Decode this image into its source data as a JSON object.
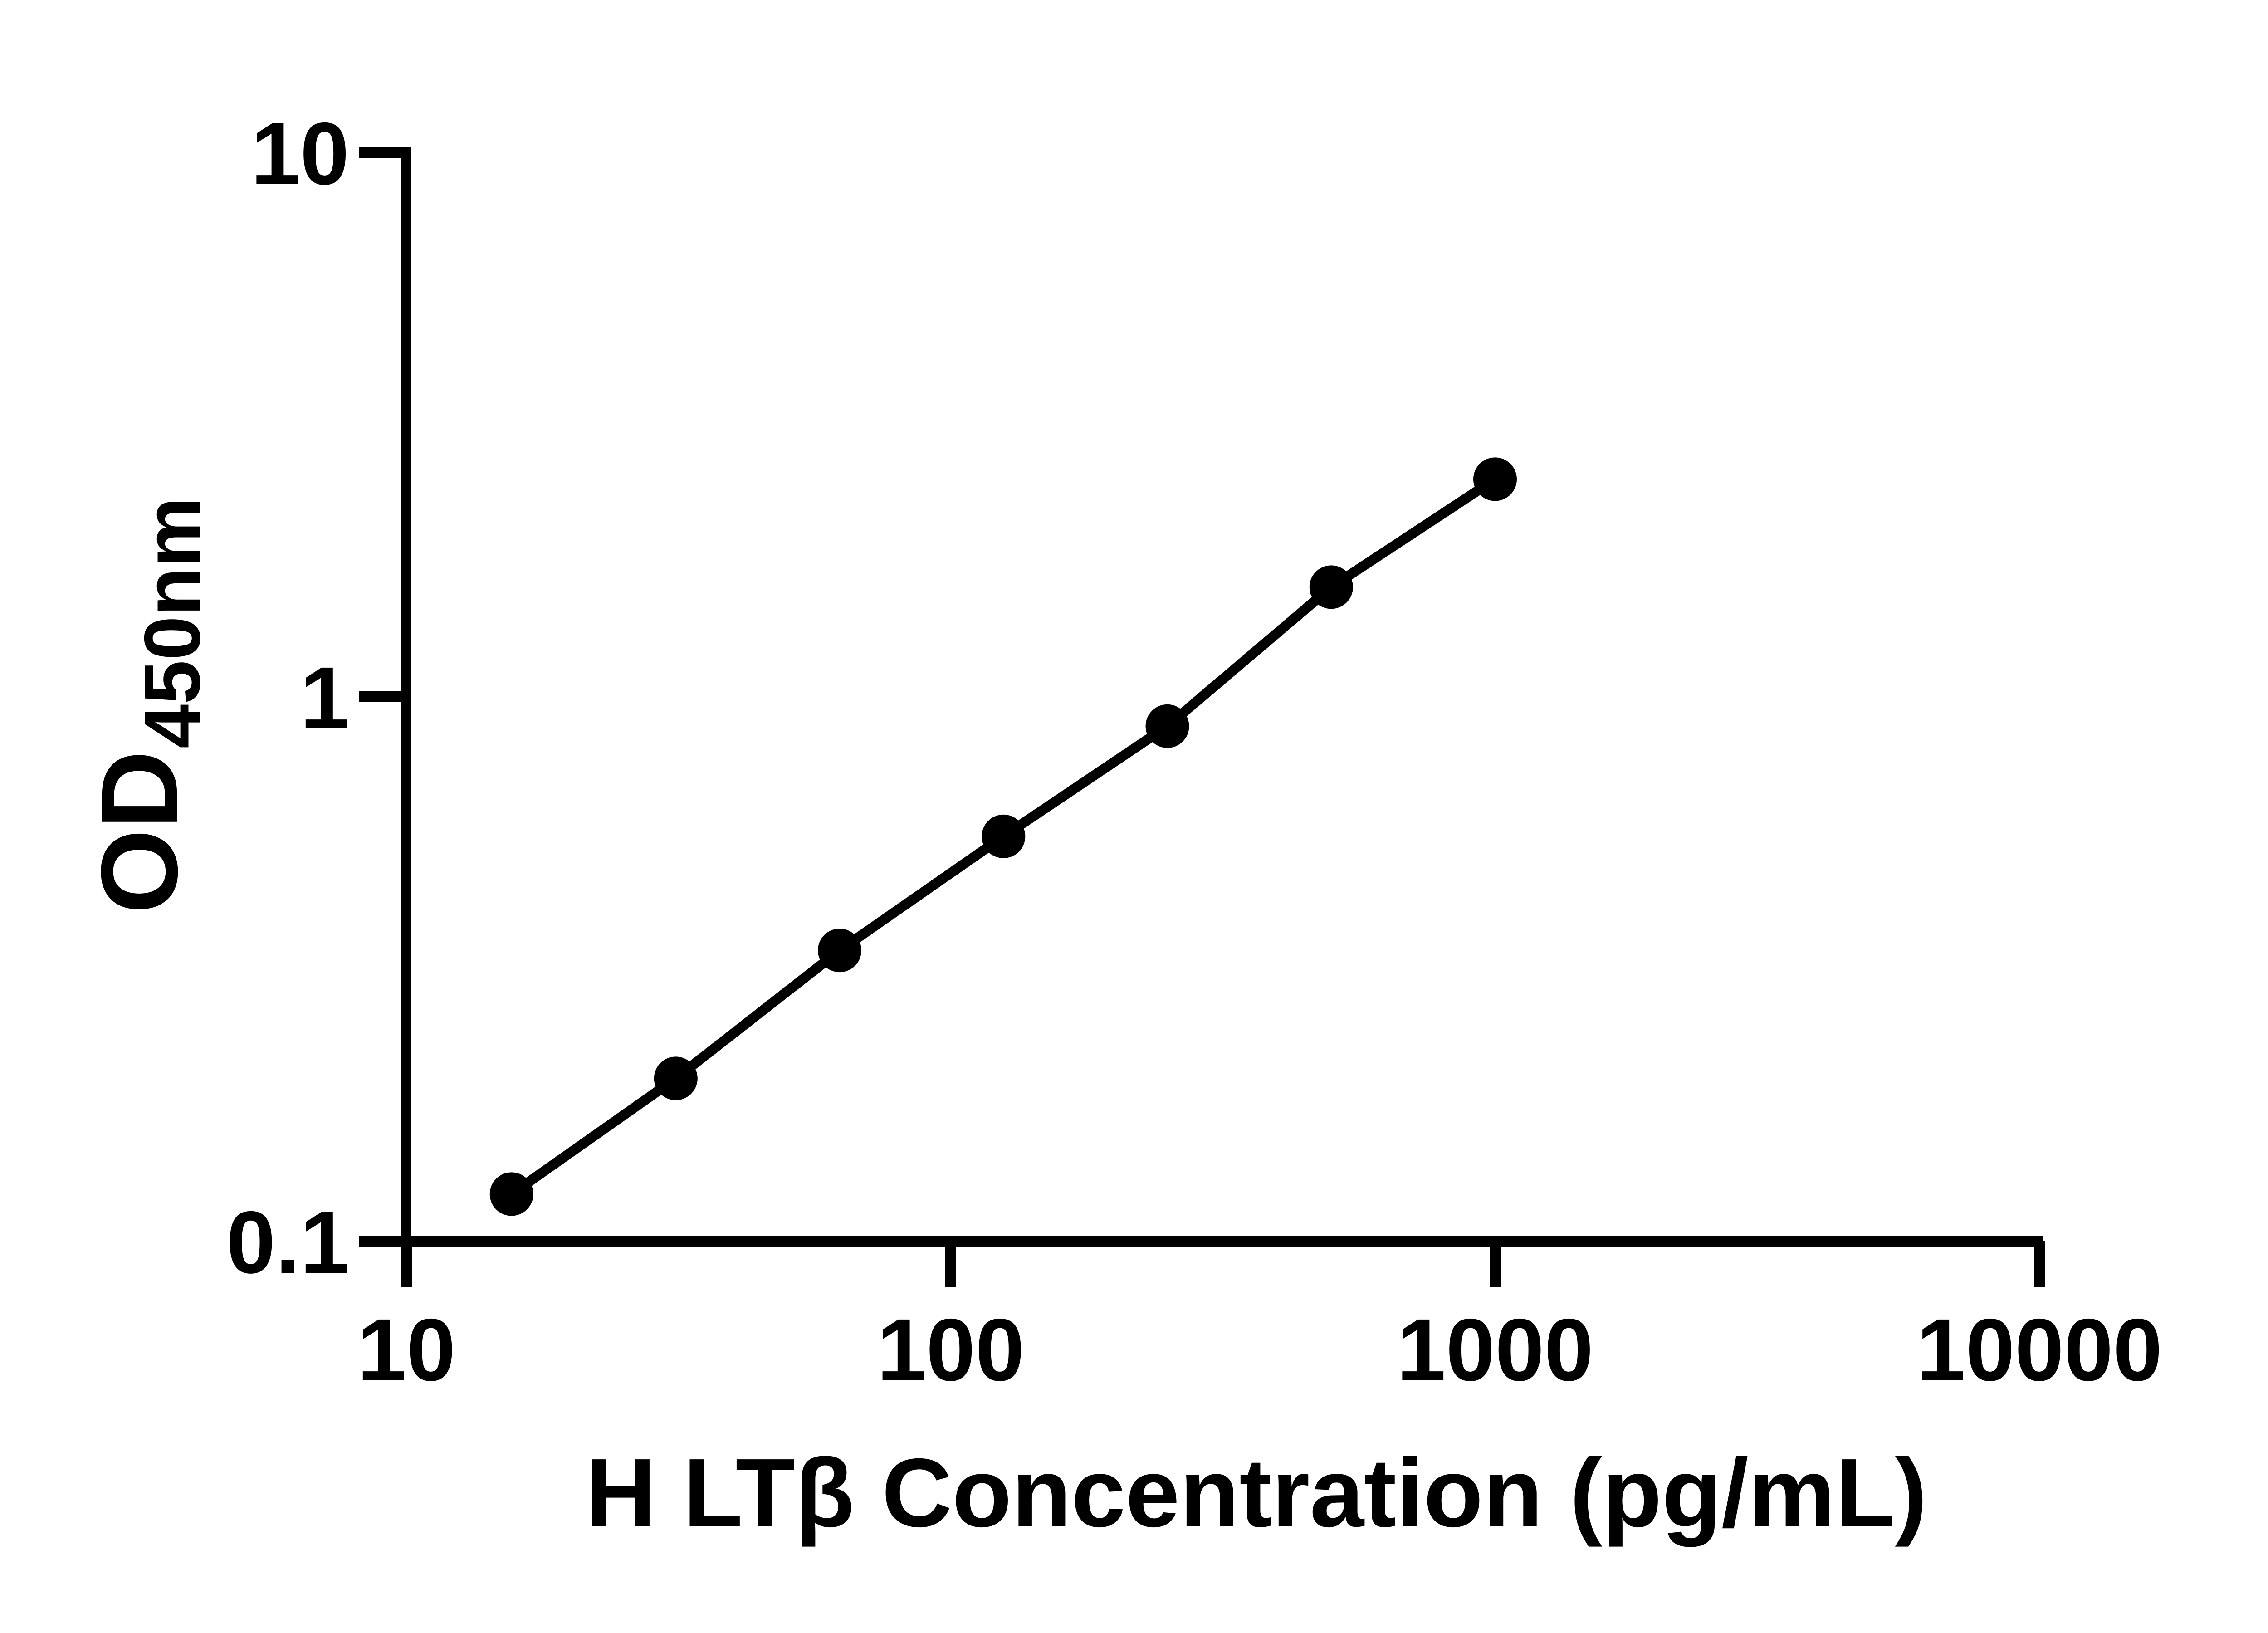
{
  "chart_data": {
    "type": "scatter",
    "title": "",
    "xlabel": "H LTβ Concentration (pg/mL)",
    "ylabel_main": "OD",
    "ylabel_sub": "450nm",
    "xscale": "log",
    "yscale": "log",
    "xlim": [
      10,
      10000
    ],
    "ylim": [
      0.1,
      10
    ],
    "grid": false,
    "legend": "none",
    "x_tick_labels": [
      "10",
      "100",
      "1000",
      "10000"
    ],
    "x_tick_values": [
      10,
      100,
      1000,
      10000
    ],
    "y_tick_labels": [
      "0.1",
      "1",
      "10"
    ],
    "y_tick_values": [
      0.1,
      1,
      10
    ],
    "series": [
      {
        "name": "standard-curve",
        "marker": "filled-circle",
        "marker_color": "#000000",
        "line_color": "#000000",
        "x": [
          15.6,
          31.25,
          62.5,
          125,
          250,
          500,
          1000
        ],
        "y": [
          0.122,
          0.199,
          0.342,
          0.554,
          0.883,
          1.59,
          2.51
        ]
      }
    ],
    "axis_color": "#000000",
    "background_color": "#ffffff"
  }
}
